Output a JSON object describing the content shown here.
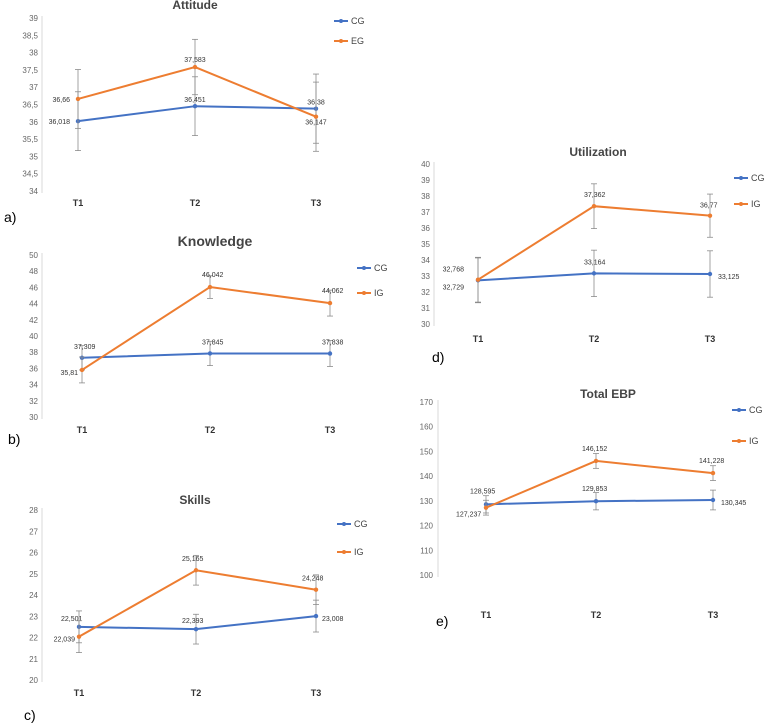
{
  "colors": {
    "cg": "#4472c4",
    "ig": "#ed7d31",
    "axis": "#d9d9d9",
    "err": "#8c8c8c"
  },
  "chart_data": [
    {
      "id": "attitude",
      "type": "line",
      "title": "Attitude",
      "tag": "a)",
      "categories": [
        "T1",
        "T2",
        "T3"
      ],
      "ylim": [
        34,
        39
      ],
      "yticks": [
        "34",
        "34,5",
        "35",
        "35,5",
        "36",
        "36,5",
        "37",
        "37,5",
        "38",
        "38,5",
        "39"
      ],
      "ytick_values": [
        34,
        34.5,
        35,
        35.5,
        36,
        36.5,
        37,
        37.5,
        38,
        38.5,
        39
      ],
      "series": [
        {
          "name": "CG",
          "key": "cg",
          "values": [
            36.018,
            36.451,
            36.38
          ],
          "labels": [
            "36,018",
            "36,451",
            "36,38"
          ],
          "err": [
            0.85,
            0.85,
            1.0
          ]
        },
        {
          "name": "EG",
          "key": "ig",
          "values": [
            36.66,
            37.583,
            36.147
          ],
          "labels": [
            "36,66",
            "37,583",
            "36,147"
          ],
          "err": [
            0.85,
            0.8,
            1.0
          ]
        }
      ]
    },
    {
      "id": "knowledge",
      "type": "line",
      "title": "Knowledge",
      "tag": "b)",
      "categories": [
        "T1",
        "T2",
        "T3"
      ],
      "ylim": [
        30,
        50
      ],
      "yticks": [
        "30",
        "32",
        "34",
        "36",
        "38",
        "40",
        "42",
        "44",
        "46",
        "48",
        "50"
      ],
      "ytick_values": [
        30,
        32,
        34,
        36,
        38,
        40,
        42,
        44,
        46,
        48,
        50
      ],
      "series": [
        {
          "name": "CG",
          "key": "cg",
          "values": [
            37.309,
            37.845,
            37.838
          ],
          "labels": [
            "37,309",
            "37,845",
            "37,838"
          ],
          "err": [
            1.5,
            1.5,
            1.6
          ]
        },
        {
          "name": "IG",
          "key": "ig",
          "values": [
            35.81,
            46.042,
            44.062
          ],
          "labels": [
            "35,81",
            "46,042",
            "44,062"
          ],
          "err": [
            1.6,
            1.4,
            1.6
          ]
        }
      ]
    },
    {
      "id": "skills",
      "type": "line",
      "title": "Skills",
      "tag": "c)",
      "categories": [
        "T1",
        "T2",
        "T3"
      ],
      "ylim": [
        20,
        28
      ],
      "yticks": [
        "20",
        "21",
        "22",
        "23",
        "24",
        "25",
        "26",
        "27",
        "28"
      ],
      "ytick_values": [
        20,
        21,
        22,
        23,
        24,
        25,
        26,
        27,
        28
      ],
      "series": [
        {
          "name": "CG",
          "key": "cg",
          "values": [
            22.501,
            22.393,
            23.008
          ],
          "labels": [
            "22,501",
            "22,393",
            "23,008"
          ],
          "err": [
            0.75,
            0.7,
            0.75
          ]
        },
        {
          "name": "IG",
          "key": "ig",
          "values": [
            22.039,
            25.165,
            24.248
          ],
          "labels": [
            "22,039",
            "25,165",
            "24,248"
          ],
          "err": [
            0.75,
            0.7,
            0.7
          ]
        }
      ]
    },
    {
      "id": "utilization",
      "type": "line",
      "title": "Utilization",
      "tag": "d)",
      "categories": [
        "T1",
        "T2",
        "T3"
      ],
      "ylim": [
        30,
        40
      ],
      "yticks": [
        "30",
        "31",
        "32",
        "33",
        "34",
        "35",
        "36",
        "37",
        "38",
        "39",
        "40"
      ],
      "ytick_values": [
        30,
        31,
        32,
        33,
        34,
        35,
        36,
        37,
        38,
        39,
        40
      ],
      "series": [
        {
          "name": "CG",
          "key": "cg",
          "values": [
            32.729,
            33.164,
            33.125
          ],
          "labels": [
            "32,729",
            "33,164",
            "33,125"
          ],
          "err": [
            1.4,
            1.45,
            1.45
          ]
        },
        {
          "name": "IG",
          "key": "ig",
          "values": [
            32.768,
            37.362,
            36.77
          ],
          "labels": [
            "32,768",
            "37,362",
            "36,77"
          ],
          "err": [
            1.4,
            1.4,
            1.35
          ]
        }
      ]
    },
    {
      "id": "total",
      "type": "line",
      "title": "Total EBP",
      "tag": "e)",
      "categories": [
        "T1",
        "T2",
        "T3"
      ],
      "ylim": [
        100,
        170
      ],
      "yticks": [
        "100",
        "110",
        "120",
        "130",
        "140",
        "150",
        "160",
        "170"
      ],
      "ytick_values": [
        100,
        110,
        120,
        130,
        140,
        150,
        160,
        170
      ],
      "series": [
        {
          "name": "CG",
          "key": "cg",
          "values": [
            128.595,
            129.853,
            130.345
          ],
          "labels": [
            "128,595",
            "129,853",
            "130,345"
          ],
          "err": [
            3.5,
            3.5,
            4
          ]
        },
        {
          "name": "IG",
          "key": "ig",
          "values": [
            127.237,
            146.152,
            141.228
          ],
          "labels": [
            "127,237",
            "146,152",
            "141,228"
          ],
          "err": [
            3,
            3,
            3
          ]
        }
      ]
    }
  ]
}
